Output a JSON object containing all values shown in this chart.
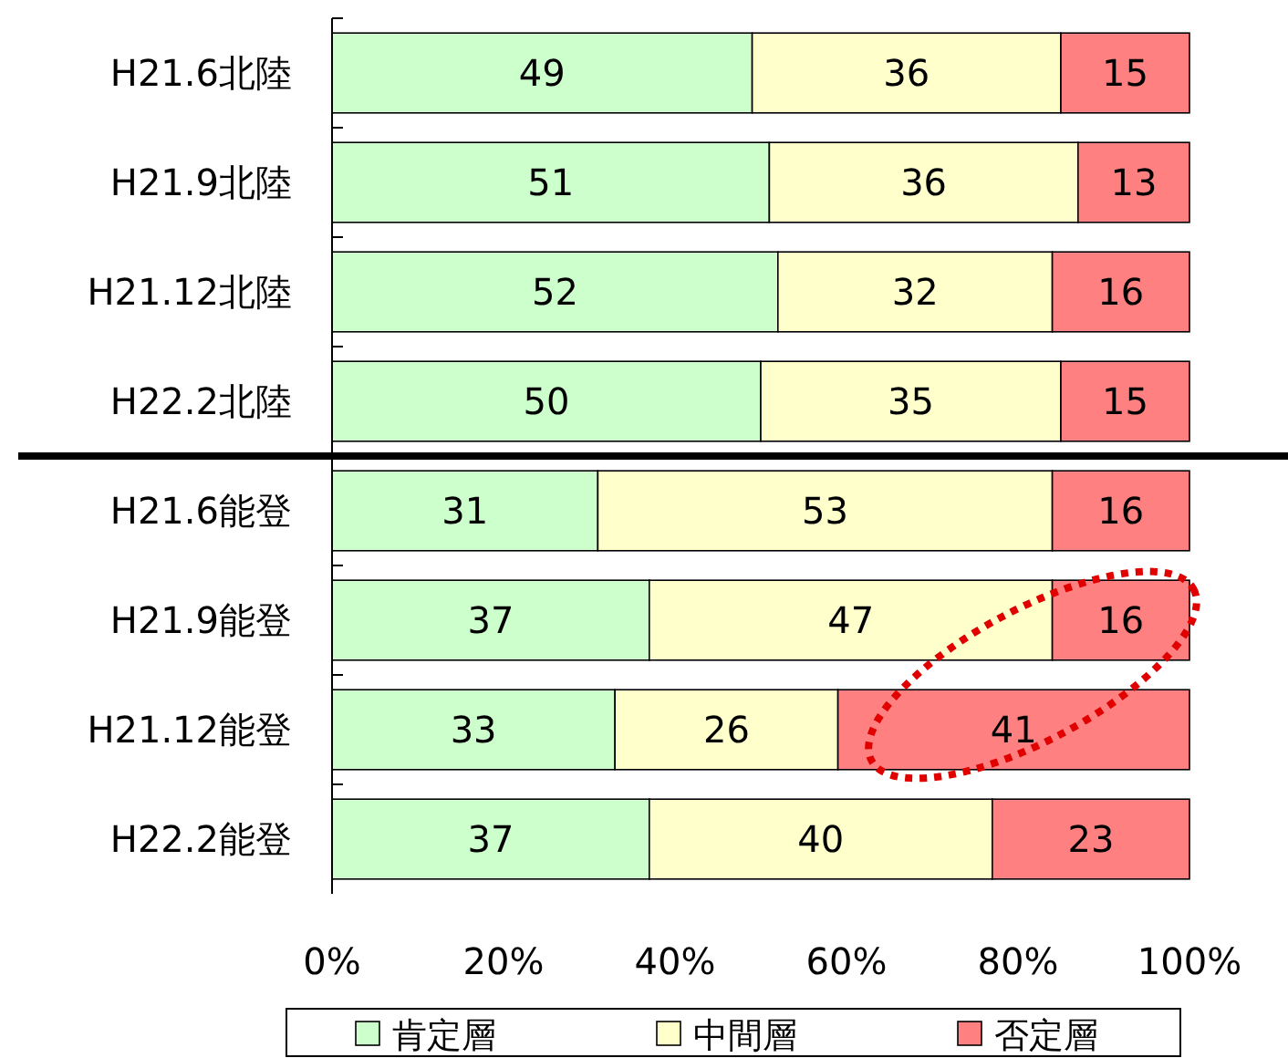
{
  "chart_data": {
    "type": "bar",
    "orientation": "horizontal",
    "stacked": true,
    "categories": [
      "H21.6北陸",
      "H21.9北陸",
      "H21.12北陸",
      "H22.2北陸",
      "H21.6能登",
      "H21.9能登",
      "H21.12能登",
      "H22.2能登"
    ],
    "series": [
      {
        "name": "肯定層",
        "color": "#ccffcc",
        "values": [
          49,
          51,
          52,
          50,
          31,
          37,
          33,
          37
        ]
      },
      {
        "name": "中間層",
        "color": "#ffffcc",
        "values": [
          36,
          36,
          32,
          35,
          53,
          47,
          26,
          40
        ]
      },
      {
        "name": "否定層",
        "color": "#ff8080",
        "values": [
          15,
          13,
          16,
          15,
          16,
          16,
          41,
          23
        ]
      }
    ],
    "xlim": [
      0,
      100
    ],
    "xticks": [
      {
        "value": 0,
        "label": "0%"
      },
      {
        "value": 20,
        "label": "20%"
      },
      {
        "value": 40,
        "label": "40%"
      },
      {
        "value": 60,
        "label": "60%"
      },
      {
        "value": 80,
        "label": "80%"
      },
      {
        "value": 100,
        "label": "100%"
      }
    ],
    "data_labels": true,
    "legend": "bottom",
    "grid": false
  }
}
